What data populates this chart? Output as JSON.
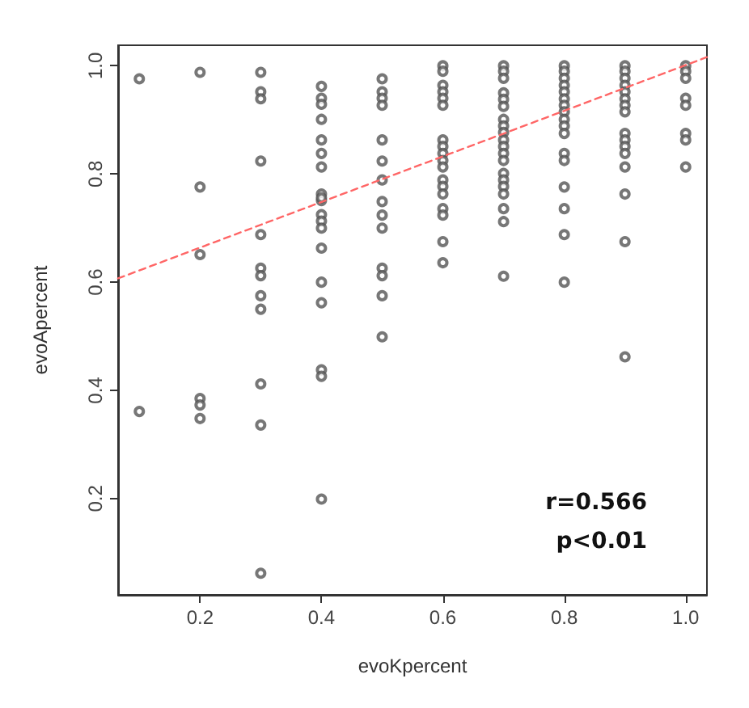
{
  "chart_data": {
    "type": "scatter",
    "xlabel": "evoKpercent",
    "ylabel": "evoApercent",
    "xlim": [
      0.065,
      1.035
    ],
    "ylim": [
      0.022,
      1.038
    ],
    "xticks": [
      {
        "value": 0.2,
        "label": "0.2"
      },
      {
        "value": 0.4,
        "label": "0.4"
      },
      {
        "value": 0.6,
        "label": "0.6"
      },
      {
        "value": 0.8,
        "label": "0.8"
      },
      {
        "value": 1.0,
        "label": "1.0"
      }
    ],
    "yticks": [
      {
        "value": 0.2,
        "label": "0.2"
      },
      {
        "value": 0.4,
        "label": "0.4"
      },
      {
        "value": 0.6,
        "label": "0.6"
      },
      {
        "value": 0.8,
        "label": "0.8"
      },
      {
        "value": 1.0,
        "label": "1.0"
      }
    ],
    "grid": false,
    "marker": "circle",
    "annotations": [
      "r=0.566",
      "p<0.01"
    ],
    "series": [
      {
        "type": "scatter",
        "color": "#555555",
        "x": [
          0.1,
          0.1,
          0.2,
          0.2,
          0.2,
          0.2,
          0.2,
          0.2,
          0.3,
          0.3,
          0.3,
          0.3,
          0.3,
          0.3,
          0.3,
          0.3,
          0.3,
          0.3,
          0.3,
          0.3,
          0.4,
          0.4,
          0.4,
          0.4,
          0.4,
          0.4,
          0.4,
          0.4,
          0.4,
          0.4,
          0.4,
          0.4,
          0.4,
          0.4,
          0.4,
          0.4,
          0.4,
          0.4,
          0.4,
          0.5,
          0.5,
          0.5,
          0.5,
          0.5,
          0.5,
          0.5,
          0.5,
          0.5,
          0.5,
          0.5,
          0.5,
          0.5,
          0.5,
          0.6,
          0.6,
          0.6,
          0.6,
          0.6,
          0.6,
          0.6,
          0.6,
          0.6,
          0.6,
          0.6,
          0.6,
          0.6,
          0.6,
          0.6,
          0.6,
          0.6,
          0.6,
          0.7,
          0.7,
          0.7,
          0.7,
          0.7,
          0.7,
          0.7,
          0.7,
          0.7,
          0.7,
          0.7,
          0.7,
          0.7,
          0.7,
          0.7,
          0.7,
          0.7,
          0.7,
          0.7,
          0.7,
          0.8,
          0.8,
          0.8,
          0.8,
          0.8,
          0.8,
          0.8,
          0.8,
          0.8,
          0.8,
          0.8,
          0.8,
          0.8,
          0.8,
          0.8,
          0.8,
          0.8,
          0.9,
          0.9,
          0.9,
          0.9,
          0.9,
          0.9,
          0.9,
          0.9,
          0.9,
          0.9,
          0.9,
          0.9,
          0.9,
          0.9,
          0.9,
          0.9,
          1.0,
          1.0,
          1.0,
          1.0,
          1.0,
          1.0,
          1.0,
          1.0
        ],
        "values": [
          0.976,
          0.361,
          0.988,
          0.776,
          0.651,
          0.385,
          0.373,
          0.348,
          0.988,
          0.952,
          0.939,
          0.824,
          0.688,
          0.626,
          0.612,
          0.575,
          0.55,
          0.412,
          0.336,
          0.062,
          0.962,
          0.94,
          0.929,
          0.901,
          0.863,
          0.838,
          0.813,
          0.763,
          0.751,
          0.725,
          0.713,
          0.7,
          0.663,
          0.6,
          0.562,
          0.438,
          0.426,
          0.199,
          0.756,
          0.976,
          0.952,
          0.94,
          0.927,
          0.863,
          0.824,
          0.789,
          0.749,
          0.724,
          0.7,
          0.626,
          0.612,
          0.575,
          0.499,
          1.0,
          0.99,
          0.964,
          0.952,
          0.94,
          0.927,
          0.863,
          0.851,
          0.838,
          0.825,
          0.813,
          0.789,
          0.777,
          0.763,
          0.736,
          0.724,
          0.675,
          0.636,
          1.0,
          0.99,
          0.977,
          0.95,
          0.938,
          0.925,
          0.901,
          0.889,
          0.877,
          0.863,
          0.851,
          0.838,
          0.825,
          0.801,
          0.789,
          0.777,
          0.763,
          0.736,
          0.712,
          0.611,
          1.0,
          0.99,
          0.977,
          0.964,
          0.952,
          0.939,
          0.927,
          0.915,
          0.901,
          0.889,
          0.875,
          0.838,
          0.825,
          0.776,
          0.736,
          0.688,
          0.6,
          1.0,
          0.99,
          0.977,
          0.964,
          0.952,
          0.939,
          0.927,
          0.915,
          0.875,
          0.863,
          0.851,
          0.838,
          0.813,
          0.763,
          0.675,
          0.462,
          1.0,
          0.99,
          0.977,
          0.94,
          0.927,
          0.875,
          0.863,
          0.813
        ]
      },
      {
        "type": "line",
        "color": "#ff6666",
        "line_style": "dashed",
        "marker": "none",
        "x": [
          0.065,
          1.035
        ],
        "values": [
          0.607,
          1.016
        ]
      }
    ]
  }
}
